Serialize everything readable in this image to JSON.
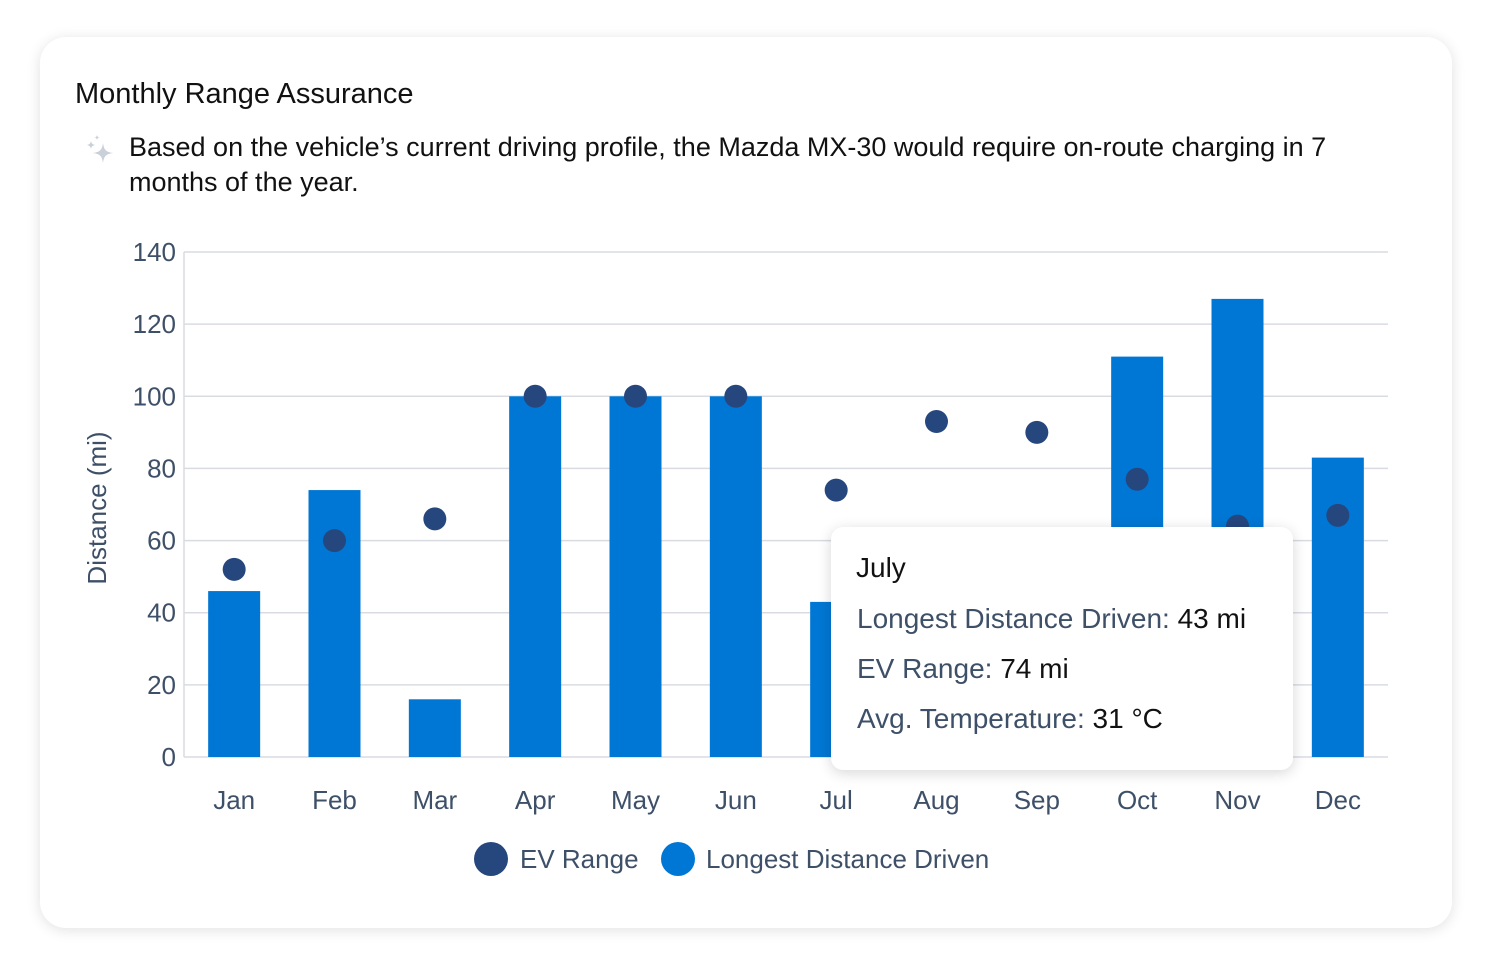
{
  "card": {
    "title": "Monthly Range Assurance",
    "insight_icon": "sparkle-icon",
    "insight": "Based on the vehicle’s current driving profile, the Mazda MX-30 would require on-route charging in 7 months of the year."
  },
  "chart_data": {
    "type": "bar",
    "title": "",
    "xlabel": "",
    "ylabel": "Distance (mi)",
    "ylim": [
      0,
      140
    ],
    "yticks": [
      0,
      20,
      40,
      60,
      80,
      100,
      120,
      140
    ],
    "grid": true,
    "legend_position": "bottom",
    "categories": [
      "Jan",
      "Feb",
      "Mar",
      "Apr",
      "May",
      "Jun",
      "Jul",
      "Aug",
      "Sep",
      "Oct",
      "Nov",
      "Dec"
    ],
    "series": [
      {
        "name": "EV Range",
        "mark": "dot",
        "color": "#26467e",
        "values": [
          52,
          60,
          66,
          100,
          100,
          100,
          74,
          93,
          90,
          77,
          64,
          67
        ]
      },
      {
        "name": "Longest Distance Driven",
        "mark": "bar",
        "color": "#0077d4",
        "values": [
          46,
          74,
          16,
          100,
          100,
          100,
          43,
          null,
          null,
          111,
          127,
          83
        ]
      }
    ]
  },
  "tooltip": {
    "title": "July",
    "rows": [
      {
        "label": "Longest Distance Driven:",
        "value": "43 mi"
      },
      {
        "label": "EV Range:",
        "value": "74 mi"
      },
      {
        "label": "Avg. Temperature:",
        "value": "31 °C"
      }
    ]
  }
}
